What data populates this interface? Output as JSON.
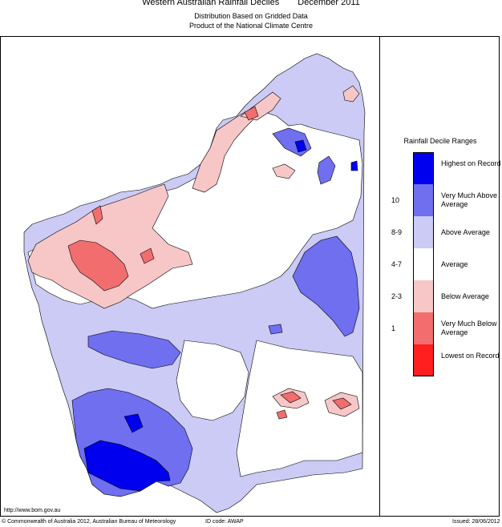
{
  "header": {
    "title_region": "Western Australian Rainfall Deciles",
    "title_period": "December 2011",
    "subtitle1": "Distribution Based on Gridded Data",
    "subtitle2": "Product of the National Climate Centre"
  },
  "legend": {
    "title": "Rainfall Decile Ranges",
    "categories": [
      {
        "label": "Highest on Record",
        "range": "",
        "color": "#0000ee"
      },
      {
        "label": "Very Much Above Average",
        "range": "10",
        "color": "#6f6ff0"
      },
      {
        "label": "Above Average",
        "range": "8-9",
        "color": "#cbcbf5"
      },
      {
        "label": "Average",
        "range": "4-7",
        "color": "#ffffff"
      },
      {
        "label": "Below Average",
        "range": "2-3",
        "color": "#f7c7c7"
      },
      {
        "label": "Very Much Below Average",
        "range": "1",
        "color": "#f26e6e"
      },
      {
        "label": "Lowest on Record",
        "range": "",
        "color": "#ff1f1f"
      }
    ]
  },
  "footer": {
    "url": "http://www.bom.gov.au",
    "copyright": "© Commonwealth of Australia 2012, Australian Bureau of Meteorology",
    "id_code": "ID code: AWAP",
    "issued": "Issued: 28/06/2012"
  }
}
